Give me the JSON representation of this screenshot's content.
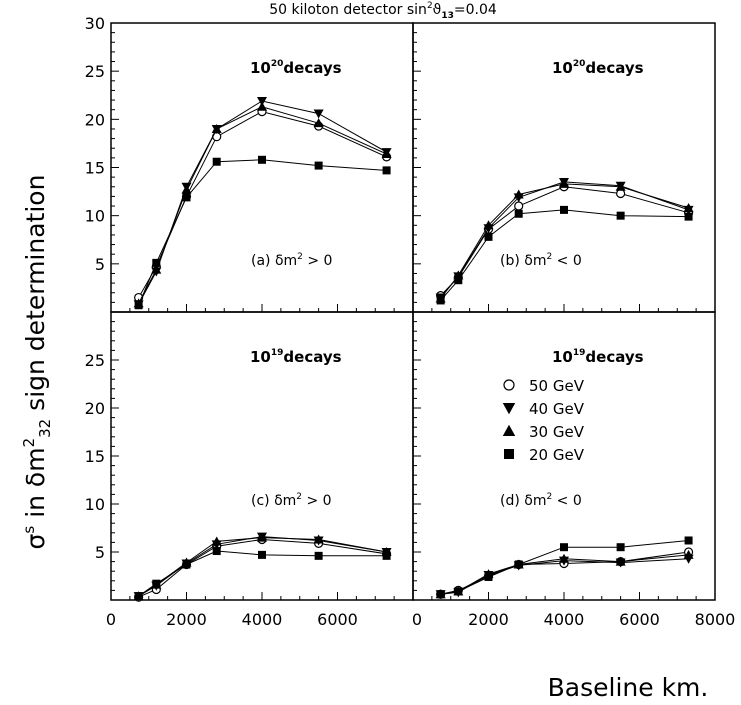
{
  "figure": {
    "title_main": "50 kiloton detector sin",
    "title_sup": "2",
    "title_theta": "ϑ",
    "title_sub": "13",
    "title_tail": "=0.04",
    "ylabel": {
      "prefix": "σ",
      "sup": "s",
      "mid": " in δm",
      "sup2": "2",
      "sub": "32",
      "tail": " sign determination"
    },
    "xlabel": "Baseline km."
  },
  "legend": {
    "entries": [
      {
        "label": "50 GeV",
        "marker": "circle-open"
      },
      {
        "label": "40 GeV",
        "marker": "triangle-down"
      },
      {
        "label": "30 GeV",
        "marker": "triangle-up"
      },
      {
        "label": "20 GeV",
        "marker": "square"
      }
    ]
  },
  "chart_data": [
    {
      "type": "line",
      "panel": "top-left",
      "label_decays_base": "10",
      "label_decays_exp": "20",
      "label_decays_word": "decays",
      "label_case_prefix": "(a)  δm",
      "label_case_sup": "2",
      "label_case_suffix": " > 0",
      "xlim": [
        0,
        8000
      ],
      "ylim": [
        0,
        30
      ],
      "yticks": [
        "5",
        "10",
        "15",
        "20",
        "25",
        "30"
      ],
      "series": [
        {
          "energy": 50,
          "x": [
            732,
            1200,
            2000,
            2800,
            4000,
            5500,
            7300
          ],
          "y": [
            1.5,
            4.7,
            12.0,
            18.2,
            20.8,
            19.3,
            16.1
          ]
        },
        {
          "energy": 40,
          "x": [
            732,
            1200,
            2000,
            2800,
            4000,
            5500,
            7300
          ],
          "y": [
            0.8,
            4.2,
            13.0,
            19.0,
            21.9,
            20.6,
            16.6
          ]
        },
        {
          "energy": 30,
          "x": [
            732,
            1200,
            2000,
            2800,
            4000,
            5500,
            7300
          ],
          "y": [
            0.9,
            4.4,
            12.7,
            19.0,
            21.3,
            19.6,
            16.4
          ]
        },
        {
          "energy": 20,
          "x": [
            732,
            1200,
            2000,
            2800,
            4000,
            5500,
            7300
          ],
          "y": [
            0.7,
            5.1,
            11.9,
            15.6,
            15.8,
            15.2,
            14.7
          ]
        }
      ]
    },
    {
      "type": "line",
      "panel": "top-right",
      "label_decays_base": "10",
      "label_decays_exp": "20",
      "label_decays_word": "decays",
      "label_case_prefix": "(b)  δm",
      "label_case_sup": "2",
      "label_case_suffix": " < 0",
      "xlim": [
        0,
        8000
      ],
      "ylim": [
        0,
        30
      ],
      "series": [
        {
          "energy": 50,
          "x": [
            732,
            1200,
            2000,
            2800,
            4000,
            5500,
            7300
          ],
          "y": [
            1.7,
            3.6,
            8.6,
            11.0,
            13.0,
            12.3,
            10.3
          ]
        },
        {
          "energy": 40,
          "x": [
            732,
            1200,
            2000,
            2800,
            4000,
            5500,
            7300
          ],
          "y": [
            1.5,
            3.7,
            8.7,
            11.9,
            13.5,
            13.1,
            10.6
          ]
        },
        {
          "energy": 30,
          "x": [
            732,
            1200,
            2000,
            2800,
            4000,
            5500,
            7300
          ],
          "y": [
            1.4,
            3.8,
            9.0,
            12.2,
            13.3,
            13.0,
            10.8
          ]
        },
        {
          "energy": 20,
          "x": [
            732,
            1200,
            2000,
            2800,
            4000,
            5500,
            7300
          ],
          "y": [
            1.2,
            3.3,
            7.8,
            10.2,
            10.6,
            10.0,
            9.9
          ]
        }
      ]
    },
    {
      "type": "line",
      "panel": "bottom-left",
      "label_decays_base": "10",
      "label_decays_exp": "19",
      "label_decays_word": "decays",
      "label_case_prefix": "(c)  δm",
      "label_case_sup": "2",
      "label_case_suffix": " > 0",
      "xlim": [
        0,
        8000
      ],
      "ylim": [
        0,
        30
      ],
      "yticks": [
        "5",
        "10",
        "15",
        "20",
        "25"
      ],
      "xticks": [
        "0",
        "2000",
        "4000",
        "6000"
      ],
      "series": [
        {
          "energy": 50,
          "x": [
            732,
            1200,
            2000,
            2800,
            4000,
            5500,
            7300
          ],
          "y": [
            0.3,
            1.1,
            3.7,
            5.6,
            6.3,
            5.9,
            4.8
          ]
        },
        {
          "energy": 40,
          "x": [
            732,
            1200,
            2000,
            2800,
            4000,
            5500,
            7300
          ],
          "y": [
            0.4,
            1.5,
            3.8,
            5.8,
            6.6,
            6.2,
            5.0
          ]
        },
        {
          "energy": 30,
          "x": [
            732,
            1200,
            2000,
            2800,
            4000,
            5500,
            7300
          ],
          "y": [
            0.4,
            1.6,
            3.9,
            6.1,
            6.5,
            6.3,
            5.0
          ]
        },
        {
          "energy": 20,
          "x": [
            732,
            1200,
            2000,
            2800,
            4000,
            5500,
            7300
          ],
          "y": [
            0.4,
            1.7,
            3.7,
            5.1,
            4.7,
            4.6,
            4.6
          ]
        }
      ]
    },
    {
      "type": "line",
      "panel": "bottom-right",
      "label_decays_base": "10",
      "label_decays_exp": "19",
      "label_decays_word": "decays",
      "label_case_prefix": "(d)  δm",
      "label_case_sup": "2",
      "label_case_suffix": " < 0",
      "xlim": [
        0,
        8000
      ],
      "ylim": [
        0,
        30
      ],
      "xticks": [
        "0",
        "2000",
        "4000",
        "6000",
        "8000"
      ],
      "series": [
        {
          "energy": 50,
          "x": [
            732,
            1200,
            2000,
            2800,
            4000,
            5500,
            7300
          ],
          "y": [
            0.6,
            1.0,
            2.5,
            3.7,
            3.8,
            4.0,
            5.0
          ]
        },
        {
          "energy": 40,
          "x": [
            732,
            1200,
            2000,
            2800,
            4000,
            5500,
            7300
          ],
          "y": [
            0.6,
            0.8,
            2.6,
            3.6,
            4.1,
            3.9,
            4.3
          ]
        },
        {
          "energy": 30,
          "x": [
            732,
            1200,
            2000,
            2800,
            4000,
            5500,
            7300
          ],
          "y": [
            0.6,
            0.9,
            2.7,
            3.7,
            4.3,
            4.0,
            4.7
          ]
        },
        {
          "energy": 20,
          "x": [
            732,
            1200,
            2000,
            2800,
            4000,
            5500,
            7300
          ],
          "y": [
            0.6,
            0.9,
            2.4,
            3.7,
            5.5,
            5.5,
            6.2
          ]
        }
      ]
    }
  ]
}
